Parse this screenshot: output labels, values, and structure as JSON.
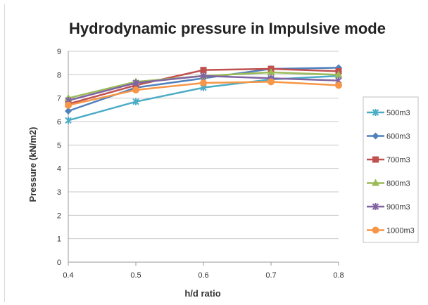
{
  "chart_data": {
    "type": "line",
    "title": "Hydrodynamic pressure in Impulsive mode",
    "xlabel": "h/d ratio",
    "ylabel": "Pressure (kN/m2)",
    "x": [
      0.4,
      0.5,
      0.6,
      0.7,
      0.8
    ],
    "x_tick_labels": [
      "0.4",
      "0.5",
      "0.6",
      "0.7",
      "0.8"
    ],
    "y_tick_labels": [
      "0",
      "1",
      "2",
      "3",
      "4",
      "5",
      "6",
      "7",
      "8",
      "9"
    ],
    "xlim": [
      0.4,
      0.8
    ],
    "ylim": [
      0,
      9
    ],
    "grid": "horizontal",
    "legend_position": "right",
    "series": [
      {
        "name": "500m3",
        "color": "#4bacc6",
        "marker": "x",
        "values": [
          6.05,
          6.85,
          7.45,
          7.8,
          7.95
        ]
      },
      {
        "name": "600m3",
        "color": "#4f81bd",
        "marker": "diamond",
        "values": [
          6.45,
          7.45,
          7.85,
          8.25,
          8.3
        ]
      },
      {
        "name": "700m3",
        "color": "#c0504d",
        "marker": "square",
        "values": [
          6.75,
          7.55,
          8.2,
          8.25,
          8.15
        ]
      },
      {
        "name": "800m3",
        "color": "#9bbb59",
        "marker": "triangle",
        "values": [
          7.0,
          7.7,
          7.95,
          8.1,
          8.0
        ]
      },
      {
        "name": "900m3",
        "color": "#8064a2",
        "marker": "x",
        "values": [
          6.9,
          7.65,
          7.95,
          7.85,
          7.75
        ]
      },
      {
        "name": "1000m3",
        "color": "#f79646",
        "marker": "circle",
        "values": [
          6.7,
          7.35,
          7.65,
          7.7,
          7.55
        ]
      }
    ]
  }
}
